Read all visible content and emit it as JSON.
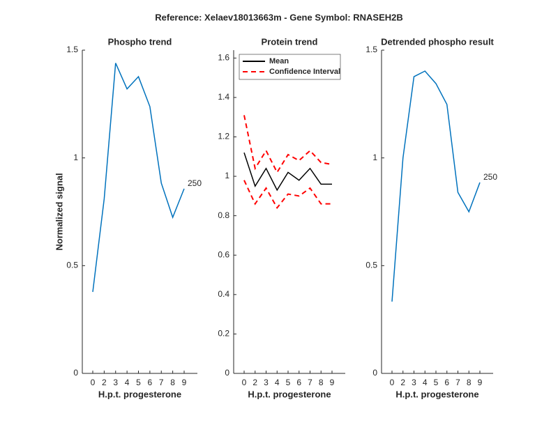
{
  "title": "Reference:  Xelaev18013663m - Gene Symbol:  RNASEH2B",
  "chart_data": [
    {
      "type": "line",
      "title": "Phospho trend",
      "xlabel": "H.p.t. progesterone",
      "ylabel": "Normalized signal",
      "categories": [
        "0",
        "2",
        "3",
        "4",
        "5",
        "6",
        "7",
        "8",
        "9"
      ],
      "series": [
        {
          "color": "#0072bd",
          "values": [
            0.378,
            0.81,
            1.44,
            1.32,
            1.377,
            1.238,
            0.883,
            0.724,
            0.857
          ]
        }
      ],
      "ylim": [
        0,
        1.5
      ],
      "yticks": [
        0,
        0.5,
        1,
        1.5
      ],
      "annotation": "250"
    },
    {
      "type": "band",
      "title": "Protein trend",
      "xlabel": "H.p.t. progesterone",
      "categories": [
        "0",
        "2",
        "3",
        "4",
        "5",
        "6",
        "7",
        "8",
        "9"
      ],
      "series": [
        {
          "name": "Mean",
          "color": "#000000",
          "values": [
            1.12,
            0.95,
            1.04,
            0.93,
            1.02,
            0.98,
            1.04,
            0.96,
            0.96
          ]
        },
        {
          "name": "Confidence Interval",
          "color": "#ff0000",
          "dashed": true,
          "upper": [
            1.31,
            1.04,
            1.13,
            1.02,
            1.11,
            1.08,
            1.13,
            1.07,
            1.06
          ],
          "lower": [
            0.98,
            0.86,
            0.94,
            0.84,
            0.91,
            0.9,
            0.94,
            0.86,
            0.86
          ]
        }
      ],
      "ylim": [
        0,
        1.64
      ],
      "yticks": [
        0,
        0.2,
        0.4,
        0.6,
        0.8,
        1,
        1.2,
        1.4,
        1.6
      ],
      "legend": "northwest"
    },
    {
      "type": "line",
      "title": "Detrended phospho result",
      "xlabel": "H.p.t. progesterone",
      "categories": [
        "0",
        "2",
        "3",
        "4",
        "5",
        "6",
        "7",
        "8",
        "9"
      ],
      "series": [
        {
          "color": "#0072bd",
          "values": [
            0.333,
            1.0,
            1.377,
            1.403,
            1.345,
            1.248,
            0.84,
            0.75,
            0.886
          ]
        }
      ],
      "ylim": [
        0,
        1.5
      ],
      "yticks": [
        0,
        0.5,
        1,
        1.5
      ],
      "annotation": "250"
    }
  ]
}
